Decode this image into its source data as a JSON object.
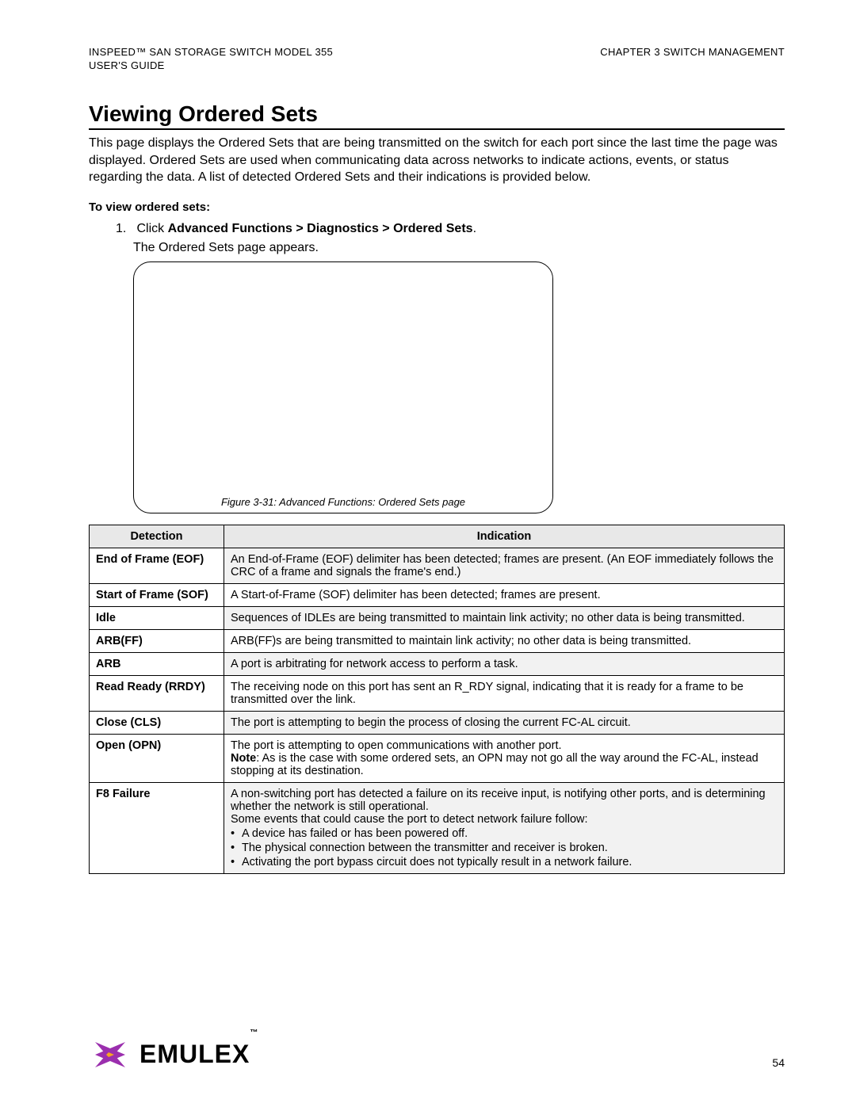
{
  "header": {
    "left_line1_a": "I",
    "left_line1_b": "N",
    "left_line1_c": "S",
    "left_line1_rest": "PEED™ SAN STORAGE SWITCH MODEL 355",
    "left_line2": "USER'S GUIDE",
    "right_line1": "CHAPTER 3 SWITCH MANAGEMENT"
  },
  "title": "Viewing Ordered Sets",
  "intro": "This page displays the Ordered Sets that are being transmitted on the switch for each port since the last time the page was displayed. Ordered Sets are used when communicating data across networks to indicate actions, events, or status regarding the data. A list of detected Ordered Sets and their indications is provided below.",
  "subhead": "To view ordered sets:",
  "step": {
    "num": "1.",
    "prefix": "Click ",
    "bold": "Advanced Functions > Diagnostics > Ordered Sets",
    "suffix": ".",
    "sub": "The Ordered Sets page appears."
  },
  "figure_caption": "Figure 3-31: Advanced Functions: Ordered Sets page",
  "table": {
    "head_detection": "Detection",
    "head_indication": "Indication",
    "rows": [
      {
        "det": "End of Frame (EOF)",
        "ind": "An End-of-Frame (EOF) delimiter has been detected; frames are present. (An EOF immediately follows the CRC of a frame and signals the frame's end.)",
        "shade": true
      },
      {
        "det": "Start of Frame (SOF)",
        "ind": "A Start-of-Frame (SOF) delimiter has been detected; frames are present.",
        "shade": false
      },
      {
        "det": "Idle",
        "ind": "Sequences of IDLEs are being transmitted to maintain link activity; no other data is being transmitted.",
        "shade": true
      },
      {
        "det": "ARB(FF)",
        "ind": "ARB(FF)s are being transmitted to maintain link activity; no other data is being transmitted.",
        "shade": false
      },
      {
        "det": "ARB",
        "ind": "A port is arbitrating for network access to perform a task.",
        "shade": true
      },
      {
        "det": "Read Ready (RRDY)",
        "ind": "The receiving node on this port has sent an R_RDY signal, indicating that it is ready for a frame to be transmitted over the link.",
        "shade": false
      },
      {
        "det": "Close (CLS)",
        "ind": "The port is attempting to begin the process of closing the current FC-AL circuit.",
        "shade": true
      },
      {
        "det": "Open (OPN)",
        "ind_line1": "The port is attempting to open communications with another port.",
        "note_label": "Note",
        "note_text": ": As is the case with some ordered sets, an OPN may not go all the way around the FC-AL, instead stopping at its destination.",
        "shade": false,
        "is_open": true
      },
      {
        "det": "F8 Failure",
        "ind_line1": "A non-switching port has detected a failure on its receive input, is notifying other ports, and is determining whether the network is still operational.",
        "ind_line2": "Some events that could cause the port to detect network failure follow:",
        "bullets": [
          "A device has failed or has been powered off.",
          "The physical connection between the transmitter and receiver is broken.",
          "Activating the port bypass circuit does not typically result in a network failure."
        ],
        "shade": true,
        "is_f8": true
      }
    ]
  },
  "footer": {
    "logo_text": "EMULEX",
    "logo_tm": "™",
    "page_number": "54"
  },
  "colors": {
    "logo_primary": "#9b2fae",
    "logo_accent": "#f5a623"
  }
}
